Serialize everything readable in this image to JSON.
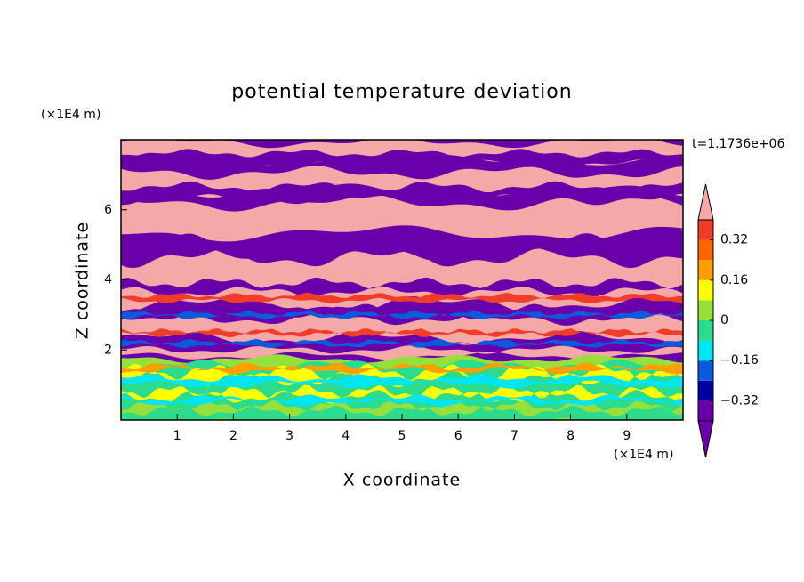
{
  "chart_data": {
    "type": "contour",
    "title": "potential temperature deviation",
    "xlabel": "X coordinate",
    "ylabel": "Z coordinate",
    "x_unit": "(×1E4 m)",
    "y_unit": "(×1E4 m)",
    "annotation": "t=1.1736e+06",
    "xlim": [
      0,
      10
    ],
    "ylim": [
      0,
      8
    ],
    "xticks": [
      1,
      2,
      3,
      4,
      5,
      6,
      7,
      8,
      9
    ],
    "yticks": [
      2,
      4,
      6
    ],
    "colorbar": {
      "levels": [
        -0.4,
        -0.32,
        -0.24,
        -0.16,
        -0.08,
        0,
        0.08,
        0.16,
        0.24,
        0.32,
        0.4
      ],
      "colors": [
        "#6a00aa",
        "#6a00aa",
        "#0000a0",
        "#0a5adc",
        "#00e6f0",
        "#2adc8c",
        "#96e03c",
        "#ffff00",
        "#ffa000",
        "#ff6400",
        "#f03c28",
        "#f5a8a8"
      ],
      "ticks": [
        {
          "value": -0.32,
          "label": "−0.32"
        },
        {
          "value": -0.16,
          "label": "−0.16"
        },
        0,
        0.16,
        0.32
      ]
    }
  }
}
